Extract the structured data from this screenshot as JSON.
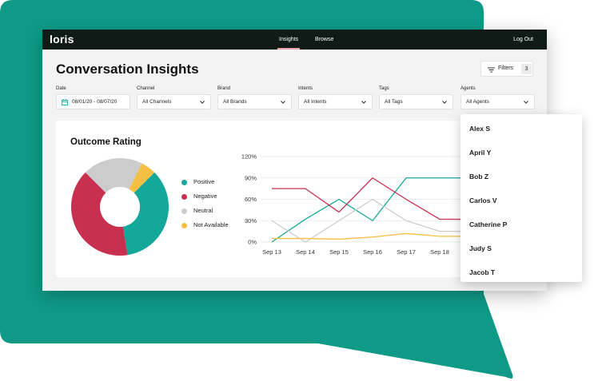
{
  "app": {
    "logo": "loris",
    "nav": [
      "Insights",
      "Browse"
    ],
    "active_nav": "Insights",
    "logout": "Log Out"
  },
  "page": {
    "title": "Conversation Insights"
  },
  "filters_button": {
    "label": "Filters",
    "count": "3"
  },
  "filters": [
    {
      "label": "Date",
      "value": "08/01/20 - 08/07/20",
      "icon": "calendar-icon"
    },
    {
      "label": "Channel",
      "value": "All Channels"
    },
    {
      "label": "Brand",
      "value": "All Brands"
    },
    {
      "label": "Intents",
      "value": "All Intents"
    },
    {
      "label": "Tags",
      "value": "All Tags"
    },
    {
      "label": "Agents",
      "value": "All Agents"
    }
  ],
  "outcome": {
    "title": "Outcome Rating",
    "legend": [
      "Positive",
      "Negative",
      "Neutral",
      "Not Available"
    ]
  },
  "agents_menu": [
    "Alex S",
    "April Y",
    "Bob Z",
    "Carlos V",
    "Catherine P",
    "Judy S",
    "Jacob T"
  ],
  "colors": {
    "positive": "#14a89a",
    "negative": "#c8304f",
    "neutral": "#cccccc",
    "not_available": "#f5bf42",
    "brand_bg": "#0f9a88",
    "nav_bg": "#101a17"
  },
  "chart_data": [
    {
      "type": "pie",
      "title": "Outcome Rating",
      "categories": [
        "Positive",
        "Negative",
        "Neutral",
        "Not Available"
      ],
      "values": [
        35,
        40,
        20,
        5
      ]
    },
    {
      "type": "line",
      "categories": [
        "Sep 13",
        "Sep 14",
        "Sep 15",
        "Sep 16",
        "Sep 17",
        "Sep 18"
      ],
      "y_ticks": [
        "0%",
        "30%",
        "60%",
        "90%",
        "120%"
      ],
      "ylim": [
        0,
        120
      ],
      "series": [
        {
          "name": "Positive",
          "values": [
            0,
            32,
            60,
            30,
            90,
            90
          ]
        },
        {
          "name": "Negative",
          "values": [
            75,
            75,
            42,
            90,
            60,
            32
          ]
        },
        {
          "name": "Neutral",
          "values": [
            30,
            0,
            30,
            60,
            30,
            15
          ]
        },
        {
          "name": "Not Available",
          "values": [
            5,
            5,
            4,
            7,
            12,
            8
          ]
        }
      ]
    }
  ]
}
